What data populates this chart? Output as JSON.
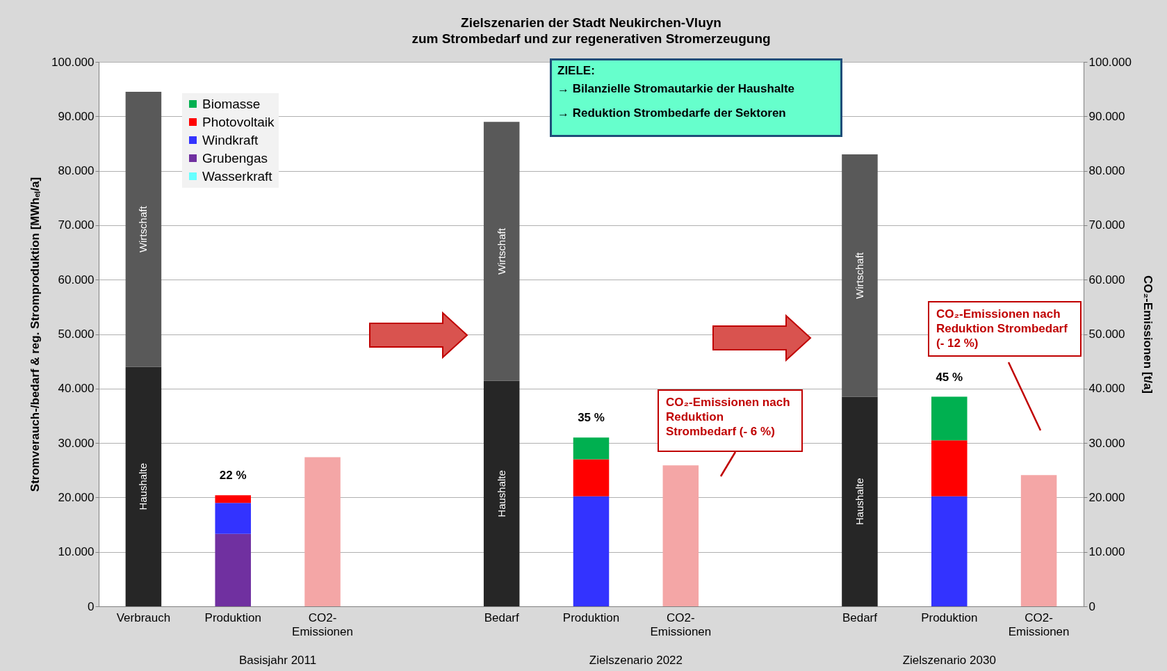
{
  "chart_data": {
    "type": "bar",
    "stacked": true,
    "title": "Zielszenarien der Stadt Neukirchen-Vluyn",
    "subtitle": "zum Strombedarf und zur regenerativen Stromerzeugung",
    "ylabel": "Stromverauch-/bedarf & reg. Stromproduktion [MWhₑₗ/a]",
    "y2label": "CO₂-Emissionen [t/a]",
    "categories": [
      "Verbrauch",
      "Produktion",
      "CO2-Emissionen",
      null,
      "Bedarf",
      "Produktion",
      "CO2-Emissionen",
      null,
      "Bedarf",
      "Produktion",
      "CO2-Emissionen"
    ],
    "series": [
      {
        "name": "Haushalte",
        "color": "#262626",
        "values": [
          44000,
          null,
          null,
          null,
          41400,
          null,
          null,
          null,
          38500,
          null,
          null
        ]
      },
      {
        "name": "Wirtschaft",
        "color": "#595959",
        "values": [
          50500,
          null,
          null,
          null,
          47600,
          null,
          null,
          null,
          44500,
          null,
          null
        ]
      },
      {
        "name": "Wasserkraft",
        "color": "#66ffff",
        "values": [
          null,
          null,
          null,
          null,
          null,
          null,
          null,
          null,
          null,
          null,
          null
        ]
      },
      {
        "name": "Grubengas",
        "color": "#7030a0",
        "values": [
          null,
          13300,
          null,
          null,
          null,
          null,
          null,
          null,
          null,
          null,
          null
        ]
      },
      {
        "name": "Windkraft",
        "color": "#3333ff",
        "values": [
          null,
          5700,
          null,
          null,
          null,
          20200,
          null,
          null,
          null,
          20200,
          null
        ]
      },
      {
        "name": "Photovoltaik",
        "color": "#ff0000",
        "values": [
          null,
          1400,
          null,
          null,
          null,
          6800,
          null,
          null,
          null,
          10300,
          null
        ]
      },
      {
        "name": "Biomasse",
        "color": "#00b050",
        "values": [
          null,
          null,
          null,
          null,
          null,
          4000,
          null,
          null,
          null,
          8000,
          null
        ]
      },
      {
        "color": "#f4a6a6",
        "axis": "y2",
        "values": [
          null,
          null,
          27400,
          null,
          null,
          null,
          25900,
          null,
          null,
          null,
          24100
        ]
      }
    ],
    "ylim": [
      0,
      100000
    ],
    "yticks": [
      0,
      {
        "value": 10000,
        "label": "10.000"
      },
      {
        "value": 20000,
        "label": "20.000"
      },
      {
        "value": 30000,
        "label": "30.000"
      },
      {
        "value": 40000,
        "label": "40.000"
      },
      {
        "value": 50000,
        "label": "50.000"
      },
      {
        "value": 60000,
        "label": "60.000"
      },
      {
        "value": 70000,
        "label": "70.000"
      },
      {
        "value": 80000,
        "label": "80.000"
      },
      {
        "value": 90000,
        "label": "90.000"
      },
      {
        "value": 100000,
        "label": "100.000"
      }
    ],
    "y2lim": [
      0,
      100000
    ],
    "y2ticks": [
      0,
      {
        "value": 10000,
        "label": "10.000"
      },
      {
        "value": 20000,
        "label": "20.000"
      },
      {
        "value": 30000,
        "label": "30.000"
      },
      {
        "value": 40000,
        "label": "40.000"
      },
      {
        "value": 50000,
        "label": "50.000"
      },
      {
        "value": 60000,
        "label": "60.000"
      },
      {
        "value": 70000,
        "label": "70.000"
      },
      {
        "value": 80000,
        "label": "80.000"
      },
      {
        "value": 90000,
        "label": "90.000"
      },
      {
        "value": 100000,
        "label": "100.000"
      }
    ],
    "grid": "y",
    "legend": "top left",
    "annotations": [
      "ZIELE:",
      "→ Bilanzielle Stromautarkie der Haushalte",
      "→ Reduktion Strombedarfe der Sektoren",
      "CO₂-Emissionen nach Reduktion Strombedarf (- 6 %)",
      "CO₂-Emissionen nach Reduktion Strombedarf (- 12 %)",
      "Basisjahr 2011",
      "Zielszenario 2022",
      "Zielszenario 2030",
      "22 %",
      "35 %",
      "45 %"
    ]
  }
}
